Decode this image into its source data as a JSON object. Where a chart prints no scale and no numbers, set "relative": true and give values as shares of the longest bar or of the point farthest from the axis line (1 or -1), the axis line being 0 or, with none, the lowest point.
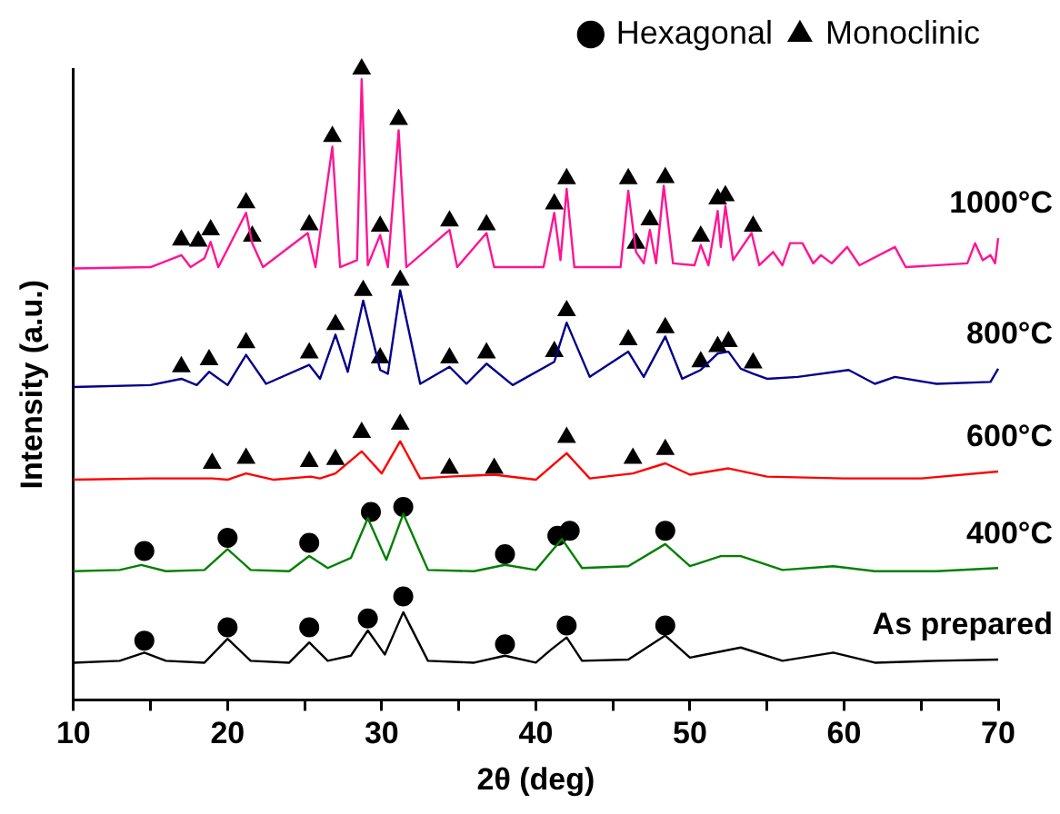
{
  "chart_data": {
    "type": "line",
    "relative": true,
    "xlabel": "2θ (deg)",
    "ylabel": "Intensity (a.u.)",
    "xlim": [
      10,
      70
    ],
    "xticks": [
      10,
      {
        "value": 15,
        "label": null
      },
      20,
      {
        "value": 25,
        "label": null
      },
      30,
      {
        "value": 35,
        "label": null
      },
      40,
      {
        "value": 45,
        "label": null
      },
      50,
      {
        "value": 55,
        "label": null
      },
      60,
      {
        "value": 65,
        "label": null
      },
      70
    ],
    "legend": "top right",
    "grid": false,
    "series": [
      {
        "name": "As prepared",
        "type": "line",
        "marker": "none",
        "color": "#000000",
        "x": [
          10,
          13,
          14.6,
          16,
          18.5,
          20,
          21.5,
          24,
          25.3,
          26.5,
          28,
          29.1,
          30.2,
          31.4,
          33,
          36,
          38,
          40,
          41,
          42,
          43,
          46,
          48.4,
          50,
          53.3,
          56,
          59.3,
          62,
          66,
          70
        ],
        "values": [
          0.059,
          0.062,
          0.075,
          0.062,
          0.059,
          0.097,
          0.062,
          0.059,
          0.091,
          0.062,
          0.07,
          0.11,
          0.072,
          0.139,
          0.062,
          0.059,
          0.07,
          0.059,
          0.08,
          0.099,
          0.062,
          0.064,
          0.102,
          0.067,
          0.083,
          0.062,
          0.075,
          0.059,
          0.062,
          0.064
        ]
      },
      {
        "name": "400°C",
        "type": "line",
        "marker": "none",
        "color": "#008000",
        "x": [
          10,
          13,
          14.4,
          16,
          18.5,
          20,
          21.5,
          24,
          25.3,
          26.5,
          28,
          29.1,
          30.3,
          31.4,
          33,
          36,
          38,
          40,
          41.7,
          43,
          46,
          48.4,
          50,
          52,
          53.3,
          56,
          59.3,
          62,
          66,
          70
        ],
        "values": [
          0.204,
          0.206,
          0.214,
          0.204,
          0.206,
          0.239,
          0.206,
          0.204,
          0.228,
          0.209,
          0.225,
          0.288,
          0.222,
          0.295,
          0.206,
          0.204,
          0.214,
          0.206,
          0.255,
          0.209,
          0.212,
          0.247,
          0.212,
          0.228,
          0.228,
          0.206,
          0.212,
          0.204,
          0.204,
          0.209
        ]
      },
      {
        "name": "600°C",
        "type": "line",
        "marker": "none",
        "color": "#ff0000",
        "x": [
          10,
          15,
          19,
          20,
          21.2,
          23,
          25.4,
          26,
          27,
          28.7,
          30,
          31.2,
          32.5,
          34.4,
          37.3,
          40,
          42,
          43.5,
          46.3,
          48.4,
          50,
          52.5,
          55,
          60,
          65,
          70
        ],
        "values": [
          0.349,
          0.351,
          0.351,
          0.349,
          0.359,
          0.349,
          0.354,
          0.351,
          0.359,
          0.394,
          0.359,
          0.41,
          0.351,
          0.354,
          0.357,
          0.349,
          0.391,
          0.351,
          0.359,
          0.375,
          0.357,
          0.367,
          0.354,
          0.351,
          0.351,
          0.362
        ]
      },
      {
        "name": "800°C",
        "type": "line",
        "marker": "none",
        "color": "#00008b",
        "x": [
          10,
          15,
          17,
          18,
          18.8,
          20,
          21.2,
          22.5,
          25.3,
          26,
          27,
          27.8,
          28.8,
          29.9,
          30.4,
          31.2,
          32.5,
          34.4,
          35.5,
          36.8,
          38.5,
          41.2,
          42,
          43.5,
          46,
          47,
          48.4,
          49.5,
          50.7,
          51.8,
          52.5,
          53.3,
          54.1,
          55,
          57,
          60.3,
          62,
          63.3,
          66,
          69.5,
          70
        ],
        "values": [
          0.496,
          0.499,
          0.509,
          0.499,
          0.52,
          0.499,
          0.547,
          0.501,
          0.531,
          0.509,
          0.579,
          0.52,
          0.633,
          0.523,
          0.517,
          0.649,
          0.501,
          0.528,
          0.501,
          0.533,
          0.499,
          0.536,
          0.598,
          0.512,
          0.552,
          0.512,
          0.576,
          0.509,
          0.523,
          0.549,
          0.552,
          0.525,
          0.517,
          0.509,
          0.512,
          0.523,
          0.501,
          0.512,
          0.501,
          0.504,
          0.525
        ]
      },
      {
        "name": "1000°C",
        "type": "line",
        "marker": "none",
        "color": "#ff1493",
        "x": [
          10,
          15,
          17,
          17.6,
          18.5,
          18.9,
          19.4,
          21.2,
          21.6,
          22.3,
          25.2,
          25.7,
          26.8,
          27.3,
          28.4,
          28.7,
          29.1,
          29.9,
          30.4,
          31.1,
          31.6,
          34.4,
          34.9,
          36.8,
          37.3,
          40.5,
          41.2,
          41.6,
          42,
          42.5,
          45.5,
          46,
          46.5,
          47,
          47.4,
          47.8,
          48.3,
          48.9,
          50.3,
          50.7,
          51.2,
          51.8,
          52,
          52.3,
          52.8,
          54,
          54.5,
          55.4,
          56,
          56.5,
          57.3,
          58,
          58.5,
          59.2,
          60.2,
          61,
          63.3,
          64,
          68,
          68.5,
          69,
          69.5,
          69.8,
          70
        ],
        "values": [
          0.684,
          0.686,
          0.705,
          0.686,
          0.7,
          0.726,
          0.686,
          0.772,
          0.724,
          0.686,
          0.74,
          0.686,
          0.877,
          0.686,
          0.697,
          0.984,
          0.689,
          0.737,
          0.686,
          0.903,
          0.686,
          0.745,
          0.686,
          0.74,
          0.686,
          0.686,
          0.772,
          0.697,
          0.81,
          0.686,
          0.686,
          0.807,
          0.71,
          0.692,
          0.745,
          0.692,
          0.815,
          0.692,
          0.689,
          0.721,
          0.689,
          0.775,
          0.718,
          0.783,
          0.697,
          0.74,
          0.689,
          0.71,
          0.689,
          0.724,
          0.724,
          0.692,
          0.705,
          0.692,
          0.718,
          0.689,
          0.718,
          0.686,
          0.692,
          0.724,
          0.697,
          0.705,
          0.692,
          0.732
        ]
      },
      {
        "name": "Hexagonal",
        "type": "scatter",
        "marker": "circle",
        "color": "#000000",
        "x": [
          14.6,
          20,
          25.3,
          29.1,
          31.4,
          38,
          42,
          48.4,
          14.6,
          20,
          25.3,
          29.3,
          31.4,
          38,
          41.4,
          42.2,
          48.4
        ],
        "values": [
          0.094,
          0.115,
          0.115,
          0.129,
          0.164,
          0.088,
          0.118,
          0.118,
          0.236,
          0.257,
          0.249,
          0.298,
          0.306,
          0.231,
          0.26,
          0.268,
          0.268
        ]
      },
      {
        "name": "Monoclinic",
        "type": "scatter",
        "marker": "triangle",
        "color": "#000000",
        "x": [
          19,
          21.2,
          25.3,
          27,
          28.7,
          31.2,
          34.4,
          37.3,
          42,
          46.3,
          48.4,
          17,
          18.8,
          21.2,
          25.3,
          27,
          28.8,
          29.9,
          31.2,
          34.4,
          36.8,
          41.2,
          42,
          46,
          48.4,
          50.7,
          51.8,
          52.5,
          54.1,
          17,
          18.1,
          18.9,
          21.2,
          21.6,
          25.3,
          26.8,
          28.7,
          29.9,
          31.1,
          34.4,
          36.8,
          41.2,
          42,
          46,
          46.5,
          47.4,
          48.4,
          50.7,
          51.8,
          52.3,
          54.1
        ],
        "values": [
          0.375,
          0.383,
          0.378,
          0.381,
          0.424,
          0.437,
          0.367,
          0.367,
          0.416,
          0.383,
          0.397,
          0.528,
          0.539,
          0.566,
          0.55,
          0.595,
          0.649,
          0.542,
          0.665,
          0.542,
          0.55,
          0.552,
          0.617,
          0.571,
          0.59,
          0.536,
          0.56,
          0.568,
          0.534,
          0.729,
          0.727,
          0.745,
          0.788,
          0.735,
          0.753,
          0.893,
          1.0,
          0.751,
          0.92,
          0.759,
          0.753,
          0.786,
          0.826,
          0.826,
          0.724,
          0.761,
          0.828,
          0.735,
          0.794,
          0.799,
          0.751
        ]
      }
    ]
  }
}
